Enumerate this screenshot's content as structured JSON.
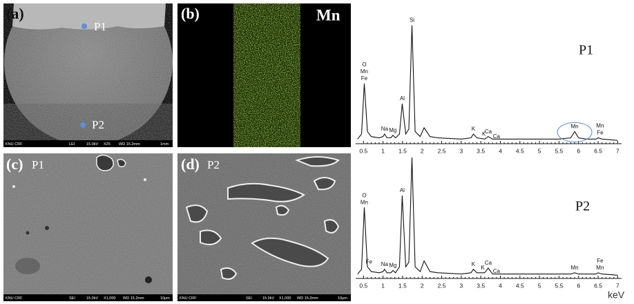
{
  "panels": [
    {
      "label": "(a)",
      "points": [
        "P1",
        "P2"
      ],
      "info": [
        "KNU CRF",
        "LEI",
        "15.0kV",
        "X25",
        "WD 15.2mm",
        "1mm"
      ]
    },
    {
      "label": "(b)",
      "element": "Mn"
    },
    {
      "label": "(c)",
      "point": "P1",
      "info": [
        "KNU CRF",
        "SEI",
        "15.0kV",
        "X1,000",
        "WD 15.2mm",
        "10μm"
      ]
    },
    {
      "label": "(d)",
      "point": "P2",
      "info": [
        "KNU CRF",
        "SEI",
        "15.0kV",
        "X1,000",
        "WD 15.2mm",
        "10μm"
      ]
    }
  ],
  "chart_data": [
    {
      "type": "line",
      "title": "P1",
      "color": "#111111",
      "x": [
        0.35,
        0.45,
        0.52,
        0.6,
        0.7,
        0.9,
        1.0,
        1.04,
        1.1,
        1.2,
        1.25,
        1.32,
        1.42,
        1.49,
        1.58,
        1.66,
        1.74,
        1.82,
        1.95,
        2.05,
        2.2,
        2.4,
        3.0,
        3.25,
        3.31,
        3.4,
        3.6,
        3.69,
        3.8,
        4.5,
        5.5,
        5.8,
        5.9,
        6.0,
        6.2,
        6.45,
        6.5,
        6.6,
        7.0
      ],
      "values": [
        2,
        6,
        46,
        8,
        4,
        3,
        4,
        6,
        3,
        3,
        5,
        3,
        6,
        30,
        6,
        10,
        92,
        8,
        4,
        11,
        4,
        3,
        2,
        3,
        6,
        3,
        2,
        4,
        2,
        2,
        2,
        3,
        8,
        3,
        2,
        2,
        3,
        2,
        1
      ],
      "xlim": [
        0.3,
        7.1
      ],
      "xticks": [
        0.5,
        1,
        1.5,
        2,
        2.5,
        3,
        3.5,
        4,
        4.5,
        5,
        5.5,
        6,
        6.5,
        7
      ],
      "ylim": [
        0,
        100
      ],
      "annotations": [
        {
          "text": "Fe",
          "x": 0.52
        },
        {
          "text": "Mn",
          "x": 0.52
        },
        {
          "text": "O",
          "x": 0.52
        },
        {
          "text": "Na",
          "x": 1.04
        },
        {
          "text": "Mg",
          "x": 1.25
        },
        {
          "text": "Al",
          "x": 1.49
        },
        {
          "text": "Si",
          "x": 1.74
        },
        {
          "text": "K",
          "x": 3.31
        },
        {
          "text": "Ca",
          "x": 3.69
        },
        {
          "text": "K",
          "x": 3.58
        },
        {
          "text": "Ca",
          "x": 3.9
        },
        {
          "text": "Mn",
          "x": 5.9,
          "circled": true
        },
        {
          "text": "Fe",
          "x": 6.55
        },
        {
          "text": "Mn",
          "x": 6.55
        }
      ]
    },
    {
      "type": "line",
      "title": "P2",
      "color": "#111111",
      "xlabel": "keV",
      "x": [
        0.35,
        0.45,
        0.52,
        0.6,
        0.7,
        0.9,
        1.0,
        1.04,
        1.1,
        1.2,
        1.25,
        1.32,
        1.42,
        1.49,
        1.58,
        1.66,
        1.74,
        1.82,
        1.95,
        2.05,
        2.2,
        2.4,
        3.0,
        3.25,
        3.31,
        3.4,
        3.6,
        3.69,
        3.8,
        4.5,
        5.5,
        5.8,
        5.9,
        6.0,
        6.2,
        6.45,
        6.5,
        6.6,
        7.0
      ],
      "values": [
        2,
        6,
        58,
        8,
        4,
        3,
        4,
        6,
        3,
        3,
        5,
        3,
        8,
        68,
        8,
        12,
        100,
        8,
        4,
        13,
        4,
        3,
        2,
        3,
        6,
        3,
        3,
        7,
        2,
        2,
        2,
        2,
        3,
        2,
        2,
        2,
        3,
        2,
        1
      ],
      "xlim": [
        0.3,
        7.1
      ],
      "xticks": [
        0.5,
        1,
        1.5,
        2,
        2.5,
        3,
        3.5,
        4,
        4.5,
        5,
        5.5,
        6,
        6.5,
        7
      ],
      "ylim": [
        0,
        100
      ],
      "annotations": [
        {
          "text": "Mn",
          "x": 0.52
        },
        {
          "text": "O",
          "x": 0.52
        },
        {
          "text": "Fe",
          "x": 0.64
        },
        {
          "text": "Na",
          "x": 1.04
        },
        {
          "text": "Mg",
          "x": 1.25
        },
        {
          "text": "Al",
          "x": 1.49
        },
        {
          "text": "K",
          "x": 3.31
        },
        {
          "text": "K",
          "x": 3.55
        },
        {
          "text": "Ca",
          "x": 3.69
        },
        {
          "text": "Ca",
          "x": 3.9
        },
        {
          "text": "Mn",
          "x": 5.9
        },
        {
          "text": "Mn",
          "x": 6.55
        },
        {
          "text": "Fe",
          "x": 6.55
        }
      ]
    }
  ]
}
